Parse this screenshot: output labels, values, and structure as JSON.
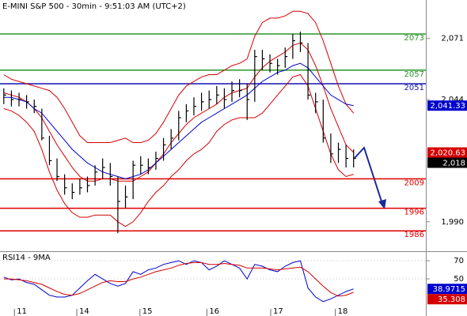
{
  "chart_data": [
    {
      "type": "ohlc",
      "title": "E-MINI S&P 500 - 30min - 9:51:03 AM (UTC+2)",
      "xlim": [
        -0.5,
        55.5
      ],
      "ylim": [
        1977,
        2088
      ],
      "yticks": [
        {
          "value": 2071,
          "label": "2,071"
        },
        {
          "value": 2044,
          "label": "2,044"
        },
        {
          "value": 1990,
          "label": "1,990"
        }
      ],
      "bars": {
        "color": "#000000",
        "last_label": "2,018",
        "high": [
          2049,
          2048,
          2047,
          2046,
          2044,
          2040,
          2028,
          2018,
          2011,
          2007,
          2009,
          2010,
          2015,
          2018,
          2016,
          2010,
          2006,
          2017,
          2019,
          2018,
          2021,
          2027,
          2031,
          2039,
          2042,
          2045,
          2047,
          2048,
          2050,
          2049,
          2052,
          2053,
          2051,
          2066,
          2066,
          2064,
          2062,
          2067,
          2073,
          2074,
          2069,
          2047,
          2044,
          2029,
          2025,
          2024,
          2022
        ],
        "low": [
          2042,
          2041,
          2041,
          2040,
          2038,
          2026,
          2015,
          2008,
          2002,
          2000,
          2002,
          2003,
          2006,
          2009,
          2006,
          1985,
          1996,
          2000,
          2011,
          2011,
          2013,
          2017,
          2022,
          2026,
          2034,
          2037,
          2039,
          2040,
          2042,
          2040,
          2043,
          2045,
          2035,
          2043,
          2057,
          2056,
          2055,
          2058,
          2062,
          2065,
          2044,
          2038,
          2025,
          2016,
          2016,
          2014,
          2014
        ],
        "close": [
          2046,
          2044,
          2044,
          2043,
          2041,
          2027,
          2017,
          2010,
          2005,
          2003,
          2005,
          2006,
          2012,
          2014,
          2010,
          1999,
          2001,
          2015,
          2015,
          2014,
          2018,
          2024,
          2027,
          2036,
          2039,
          2041,
          2043,
          2044,
          2046,
          2044,
          2048,
          2048,
          2044,
          2063,
          2062,
          2060,
          2059,
          2063,
          2070,
          2069,
          2046,
          2043,
          2027,
          2020,
          2022,
          2018,
          2018
        ]
      },
      "overlays": [
        {
          "color": "#d40000",
          "values": [
            2055,
            2053,
            2052,
            2051,
            2050,
            2049,
            2048,
            2045,
            2040,
            2034,
            2028,
            2025,
            2025,
            2025,
            2025,
            2026,
            2027,
            2025,
            2025,
            2026,
            2029,
            2034,
            2040,
            2046,
            2050,
            2052,
            2054,
            2055,
            2055,
            2057,
            2059,
            2060,
            2062,
            2072,
            2078,
            2080,
            2080,
            2081,
            2083,
            2083,
            2082,
            2078,
            2070,
            2060,
            2050,
            2042,
            2038
          ]
        },
        {
          "color": "#d40000",
          "values": [
            2040,
            2039,
            2037,
            2034,
            2030,
            2022,
            2012,
            2004,
            1998,
            1994,
            1992,
            1992,
            1993,
            1993,
            1993,
            1990,
            1988,
            1990,
            1994,
            1999,
            2003,
            2006,
            2010,
            2013,
            2017,
            2020,
            2022,
            2025,
            2030,
            2033,
            2035,
            2036,
            2036,
            2036,
            2038,
            2042,
            2046,
            2050,
            2054,
            2055,
            2050,
            2040,
            2030,
            2020,
            2013,
            2010,
            2011
          ]
        },
        {
          "color": "#d40000",
          "last_label": "2,020.63",
          "values": [
            2047,
            2046,
            2045,
            2043,
            2040,
            2036,
            2030,
            2024,
            2019,
            2014,
            2010,
            2008,
            2008,
            2009,
            2009,
            2008,
            2008,
            2008,
            2010,
            2012,
            2016,
            2020,
            2025,
            2029,
            2033,
            2036,
            2038,
            2040,
            2042,
            2045,
            2047,
            2048,
            2049,
            2054,
            2058,
            2061,
            2063,
            2065,
            2068,
            2069,
            2066,
            2059,
            2050,
            2040,
            2032,
            2024,
            2020.63
          ]
        },
        {
          "color": "#0000cc",
          "last_label": "2,041.33",
          "values": [
            2045,
            2045,
            2044,
            2043,
            2040,
            2038,
            2034,
            2030,
            2026,
            2022,
            2019,
            2016,
            2014,
            2012,
            2011,
            2010,
            2009,
            2010,
            2011,
            2013,
            2016,
            2019,
            2022,
            2025,
            2028,
            2031,
            2034,
            2036,
            2038,
            2040,
            2042,
            2044,
            2046,
            2049,
            2052,
            2054,
            2056,
            2057,
            2059,
            2060,
            2058,
            2054,
            2050,
            2046,
            2044,
            2042,
            2041.33
          ]
        }
      ],
      "levels": [
        {
          "value": 2073,
          "color": "#2a962a"
        },
        {
          "value": 2057,
          "color": "#2a962a"
        },
        {
          "value": 2051,
          "color": "#1414b4"
        },
        {
          "value": 2009,
          "color": "#e00000"
        },
        {
          "value": 1996,
          "color": "#e00000"
        },
        {
          "value": 1986,
          "color": "#e00000"
        }
      ]
    },
    {
      "type": "line",
      "title": "RSI14 - 9MA",
      "xlim": [
        -0.5,
        55.5
      ],
      "ylim": [
        13.5,
        80.5
      ],
      "yticks": [
        70,
        50
      ],
      "xticks": [
        {
          "value": 1.4,
          "label": "11"
        },
        {
          "value": 9.6,
          "label": "14"
        },
        {
          "value": 17.9,
          "label": "15"
        },
        {
          "value": 26.7,
          "label": "16"
        },
        {
          "value": 35.1,
          "label": "17"
        },
        {
          "value": 43.6,
          "label": "18"
        }
      ],
      "series": [
        {
          "color": "#0000cc",
          "values": [
            52,
            49,
            50,
            46,
            44,
            38,
            32,
            30,
            30,
            32,
            40,
            48,
            55,
            50,
            45,
            42,
            45,
            58,
            55,
            60,
            62,
            66,
            68,
            70,
            66,
            70,
            68,
            60,
            64,
            70,
            66,
            62,
            50,
            66,
            64,
            60,
            58,
            64,
            68,
            70,
            40,
            30,
            25,
            28,
            32,
            36,
            38.9715
          ]
        },
        {
          "color": "#d40000",
          "values": [
            50,
            50,
            49,
            48,
            46,
            44,
            40,
            36,
            33,
            32,
            34,
            38,
            42,
            46,
            48,
            47,
            47,
            50,
            52,
            55,
            58,
            60,
            62,
            65,
            67,
            68,
            68,
            66,
            66,
            67,
            66,
            65,
            62,
            62,
            62,
            61,
            60,
            61,
            62,
            63,
            58,
            50,
            42,
            35,
            31,
            32,
            35.308
          ]
        }
      ]
    }
  ]
}
